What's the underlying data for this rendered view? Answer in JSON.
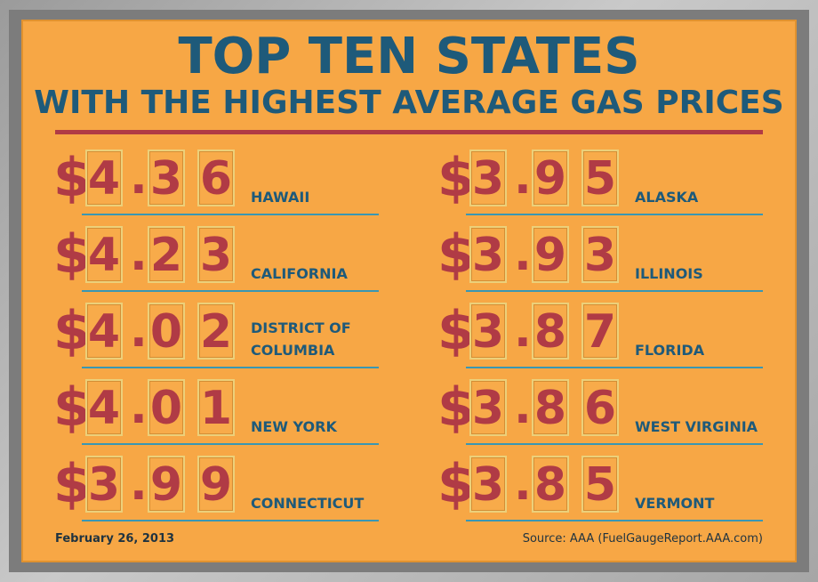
{
  "title": {
    "line1": "TOP TEN STATES",
    "line2": "WITH THE HIGHEST AVERAGE GAS PRICES"
  },
  "currency": "$",
  "left_column": [
    {
      "state": "HAWAII",
      "d1": "4",
      "d2": "3",
      "d3": "6"
    },
    {
      "state": "CALIFORNIA",
      "d1": "4",
      "d2": "2",
      "d3": "3"
    },
    {
      "state": "DISTRICT OF\nCOLUMBIA",
      "d1": "4",
      "d2": "0",
      "d3": "2"
    },
    {
      "state": "NEW YORK",
      "d1": "4",
      "d2": "0",
      "d3": "1"
    },
    {
      "state": "CONNECTICUT",
      "d1": "3",
      "d2": "9",
      "d3": "9"
    }
  ],
  "right_column": [
    {
      "state": "ALASKA",
      "d1": "3",
      "d2": "9",
      "d3": "5"
    },
    {
      "state": "ILLINOIS",
      "d1": "3",
      "d2": "9",
      "d3": "3"
    },
    {
      "state": "FLORIDA",
      "d1": "3",
      "d2": "8",
      "d3": "7"
    },
    {
      "state": "WEST VIRGINIA",
      "d1": "3",
      "d2": "8",
      "d3": "6"
    },
    {
      "state": "VERMONT",
      "d1": "3",
      "d2": "8",
      "d3": "5"
    }
  ],
  "footer": {
    "date": "February 26, 2013",
    "source": "Source: AAA (FuelGaugeReport.AAA.com)"
  },
  "colors": {
    "background": "#f7a745",
    "title": "#1e5a7a",
    "price": "#b03b45",
    "underline": "#3a97b3"
  }
}
